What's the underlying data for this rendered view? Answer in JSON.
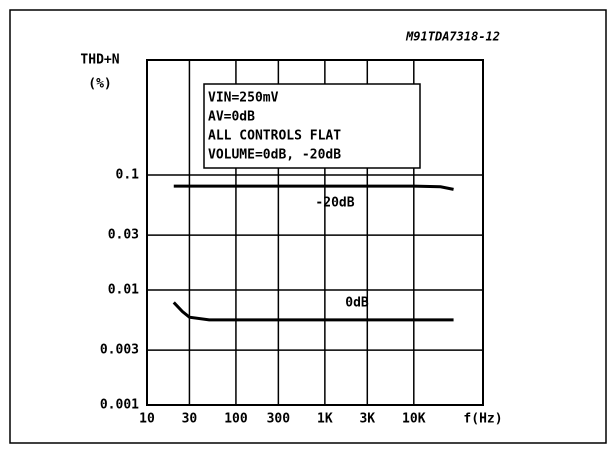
{
  "chart_data": {
    "type": "line",
    "code": "M91TDA7318-12",
    "ylabel": [
      "THD+N",
      "(%)"
    ],
    "xlabel": "f(Hz)",
    "annotation": [
      "VIN=250mV",
      "AV=0dB",
      "ALL CONTROLS FLAT",
      "VOLUME=0dB, -20dB"
    ],
    "x": [
      20,
      25,
      30,
      50,
      100,
      1000,
      10000,
      20000,
      28000
    ],
    "series": [
      {
        "name": "-20dB",
        "color": "#000000",
        "values": [
          0.08,
          0.08,
          0.08,
          0.08,
          0.08,
          0.08,
          0.08,
          0.079,
          0.075
        ]
      },
      {
        "name": "0dB",
        "color": "#000000",
        "values": [
          0.0078,
          0.0065,
          0.0058,
          0.0055,
          0.0055,
          0.0055,
          0.0055,
          0.0055,
          0.0055
        ]
      }
    ],
    "xscale": "log",
    "yscale": "log",
    "xlim": [
      10,
      60000
    ],
    "xticks": [
      10,
      30,
      100,
      300,
      {
        "value": 1000,
        "label": "1K"
      },
      {
        "value": 3000,
        "label": "3K"
      },
      {
        "value": 10000,
        "label": "10K"
      }
    ],
    "ylim": [
      0.001,
      1
    ],
    "yticks": [
      0.001,
      0.003,
      0.01,
      0.03,
      0.1
    ],
    "grid": true
  }
}
